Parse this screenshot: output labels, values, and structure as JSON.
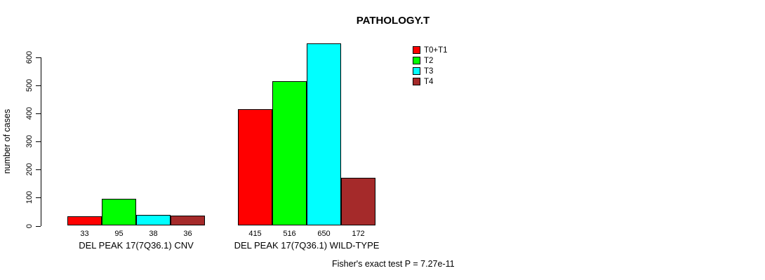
{
  "chart_data": {
    "type": "bar",
    "title": "PATHOLOGY.T",
    "ylabel": "number of cases",
    "xlabel": "",
    "ylim": [
      0,
      600
    ],
    "yticks": [
      0,
      100,
      200,
      300,
      400,
      500,
      600
    ],
    "grid": false,
    "legend_position": "top-right",
    "categories": [
      "DEL PEAK 17(7Q36.1) CNV",
      "DEL PEAK 17(7Q36.1) WILD-TYPE"
    ],
    "series": [
      {
        "name": "T0+T1",
        "color": "#FF0000",
        "values": [
          33,
          415
        ]
      },
      {
        "name": "T2",
        "color": "#00FF00",
        "values": [
          95,
          516
        ]
      },
      {
        "name": "T3",
        "color": "#00FFFF",
        "values": [
          38,
          650
        ]
      },
      {
        "name": "T4",
        "color": "#A52A2A",
        "values": [
          36,
          172
        ]
      }
    ],
    "bar_value_labels": [
      [
        "33",
        "95",
        "38",
        "36"
      ],
      [
        "415",
        "516",
        "650",
        "172"
      ]
    ],
    "annotation": "Fisher's exact test P = 7.27e-11"
  }
}
